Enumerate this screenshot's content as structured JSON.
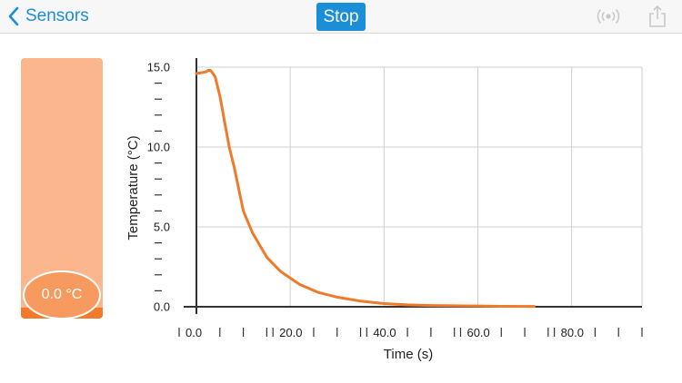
{
  "navbar": {
    "back_label": "Sensors",
    "stop_label": "Stop",
    "accent_color": "#1a8ed6",
    "icons": [
      "chevron-left-icon",
      "broadcast-icon",
      "share-icon"
    ]
  },
  "gauge": {
    "readout": "0.0 °C",
    "fill_color": "#fcb68d",
    "level_color": "#f47a2b"
  },
  "chart_data": {
    "type": "line",
    "xlabel": "Time (s)",
    "ylabel": "Temperature (°C)",
    "xlim": [
      0,
      95
    ],
    "ylim": [
      0,
      15
    ],
    "x_ticks": [
      "0.0",
      "20.0",
      "40.0",
      "60.0",
      "80.0"
    ],
    "y_ticks": [
      "0.0",
      "5.0",
      "10.0",
      "15.0"
    ],
    "grid": true,
    "line_color": "#f07a2a",
    "series": [
      {
        "x": [
          0,
          2,
          2.5,
          3,
          3.5,
          4,
          5,
          6,
          7,
          8,
          10,
          12,
          15,
          18,
          22,
          26,
          30,
          35,
          40,
          45,
          50,
          55,
          60,
          65,
          72
        ],
        "y": [
          14.6,
          14.7,
          14.8,
          14.8,
          14.6,
          14.4,
          13.2,
          11.6,
          10.0,
          8.8,
          6.0,
          4.6,
          3.1,
          2.2,
          1.4,
          0.9,
          0.6,
          0.35,
          0.2,
          0.12,
          0.08,
          0.06,
          0.05,
          0.03,
          0.02
        ]
      }
    ]
  }
}
